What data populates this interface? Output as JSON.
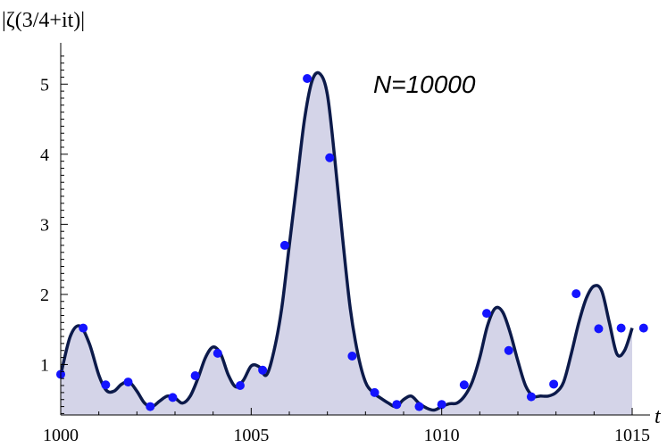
{
  "chart_data": {
    "type": "line",
    "ylabel": "|ζ(3/4+it)|",
    "xlabel": "t",
    "annotation": "N=10000",
    "xlim": [
      1000,
      1015
    ],
    "ylim": [
      0.28,
      5.5
    ],
    "xticks": [
      1000,
      1005,
      1010,
      1015
    ],
    "yticks": [
      1,
      2,
      3,
      4,
      5
    ],
    "colors": {
      "curve": "#0c1a4a",
      "fill": "#d4d4e8",
      "points": "#1414ff"
    },
    "series": [
      {
        "style": "curve",
        "x": [
          1000.0,
          1000.25,
          1000.5,
          1000.75,
          1001.0,
          1001.2,
          1001.4,
          1001.6,
          1001.8,
          1002.0,
          1002.2,
          1002.4,
          1002.6,
          1002.8,
          1003.0,
          1003.2,
          1003.4,
          1003.6,
          1003.8,
          1004.0,
          1004.2,
          1004.4,
          1004.6,
          1004.8,
          1005.0,
          1005.2,
          1005.4,
          1005.6,
          1005.8,
          1006.0,
          1006.2,
          1006.4,
          1006.6,
          1006.8,
          1007.0,
          1007.2,
          1007.4,
          1007.6,
          1007.8,
          1008.0,
          1008.2,
          1008.4,
          1008.6,
          1008.8,
          1009.0,
          1009.2,
          1009.4,
          1009.6,
          1009.8,
          1010.0,
          1010.2,
          1010.4,
          1010.6,
          1010.8,
          1011.0,
          1011.2,
          1011.4,
          1011.6,
          1011.8,
          1012.0,
          1012.2,
          1012.4,
          1012.6,
          1012.8,
          1013.0,
          1013.2,
          1013.4,
          1013.6,
          1013.8,
          1014.0,
          1014.2,
          1014.4,
          1014.6,
          1014.8,
          1015.0
        ],
        "y": [
          0.85,
          1.4,
          1.55,
          1.3,
          0.85,
          0.63,
          0.62,
          0.72,
          0.75,
          0.62,
          0.45,
          0.4,
          0.48,
          0.55,
          0.52,
          0.45,
          0.55,
          0.8,
          1.1,
          1.25,
          1.15,
          0.85,
          0.68,
          0.78,
          0.98,
          0.97,
          0.85,
          1.2,
          1.8,
          2.7,
          3.6,
          4.5,
          5.05,
          5.15,
          4.85,
          3.9,
          2.8,
          1.8,
          1.15,
          0.75,
          0.6,
          0.52,
          0.45,
          0.4,
          0.5,
          0.55,
          0.45,
          0.38,
          0.35,
          0.4,
          0.44,
          0.45,
          0.55,
          0.75,
          1.1,
          1.55,
          1.8,
          1.75,
          1.45,
          1.05,
          0.7,
          0.55,
          0.55,
          0.55,
          0.6,
          0.75,
          1.15,
          1.6,
          1.95,
          2.12,
          2.05,
          1.6,
          1.15,
          1.2,
          1.52
        ]
      },
      {
        "style": "points",
        "x": [
          1000.0,
          1000.59,
          1001.18,
          1001.77,
          1002.35,
          1002.94,
          1003.53,
          1004.12,
          1004.71,
          1005.3,
          1005.88,
          1006.47,
          1007.06,
          1007.65,
          1008.24,
          1008.82,
          1009.41,
          1010.0,
          1010.59,
          1011.18,
          1011.76,
          1012.35,
          1012.94,
          1013.53,
          1014.12,
          1014.71,
          1015.3
        ],
        "y": [
          0.86,
          1.52,
          0.71,
          0.75,
          0.4,
          0.53,
          0.84,
          1.16,
          0.7,
          0.92,
          2.7,
          5.08,
          3.95,
          1.12,
          0.6,
          0.43,
          0.4,
          0.43,
          0.71,
          1.73,
          1.2,
          0.54,
          0.72,
          2.01,
          1.51,
          1.52,
          1.52
        ]
      }
    ]
  }
}
